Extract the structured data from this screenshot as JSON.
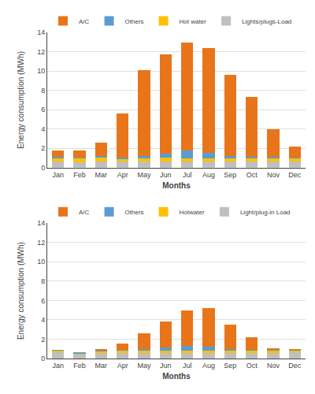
{
  "chart_data": [
    {
      "type": "bar",
      "stacked": true,
      "categories": [
        "Jan",
        "Feb",
        "Mar",
        "Apr",
        "May",
        "Jun",
        "Jul",
        "Aug",
        "Sep",
        "Oct",
        "Nov",
        "Dec"
      ],
      "xlabel": "Months",
      "ylabel": "Energy consumption (MWh)",
      "ylim": [
        0,
        14
      ],
      "yticks": [
        0,
        2,
        4,
        6,
        8,
        10,
        12,
        14
      ],
      "grid": true,
      "legend": "upper left",
      "series": [
        {
          "name": "Lights/plugs-Load",
          "color": "#BFBFBF",
          "values": [
            0.6,
            0.55,
            0.6,
            0.6,
            0.6,
            0.6,
            0.6,
            0.6,
            0.6,
            0.6,
            0.6,
            0.6
          ]
        },
        {
          "name": "Hot water",
          "color": "#FFC000",
          "values": [
            0.42,
            0.42,
            0.5,
            0.35,
            0.38,
            0.42,
            0.38,
            0.38,
            0.38,
            0.42,
            0.4,
            0.4
          ]
        },
        {
          "name": "Others",
          "color": "#5B9BD5",
          "values": [
            0.08,
            0.08,
            0.1,
            0.1,
            0.22,
            0.45,
            0.78,
            0.55,
            0.22,
            0.12,
            0.1,
            0.08
          ]
        },
        {
          "name": "A/C",
          "color": "#E8751A",
          "values": [
            0.7,
            0.72,
            1.38,
            4.55,
            8.9,
            10.25,
            11.18,
            10.8,
            8.42,
            6.15,
            2.85,
            1.08
          ]
        }
      ]
    },
    {
      "type": "bar",
      "stacked": true,
      "categories": [
        "Jan",
        "Feb",
        "Mar",
        "Apr",
        "May",
        "Jun",
        "Jul",
        "Aug",
        "Sep",
        "Oct",
        "Nov",
        "Dec"
      ],
      "xlabel": "Months",
      "ylabel": "Energy consumption (MWh)",
      "ylim": [
        0,
        14
      ],
      "yticks": [
        0,
        2,
        4,
        6,
        8,
        10,
        12,
        14
      ],
      "grid": true,
      "legend": "upper left",
      "series": [
        {
          "name": "Light/plug-in Load",
          "color": "#BFBFBF",
          "values": [
            0.65,
            0.4,
            0.55,
            0.55,
            0.55,
            0.55,
            0.55,
            0.55,
            0.55,
            0.55,
            0.55,
            0.65
          ]
        },
        {
          "name": "Hotwater",
          "color": "#FFC000",
          "values": [
            0.18,
            0.12,
            0.22,
            0.28,
            0.28,
            0.28,
            0.28,
            0.28,
            0.28,
            0.28,
            0.25,
            0.18
          ]
        },
        {
          "name": "Others",
          "color": "#5B9BD5",
          "values": [
            0.04,
            0.04,
            0.08,
            0.1,
            0.18,
            0.28,
            0.48,
            0.42,
            0.18,
            0.08,
            0.06,
            0.06
          ]
        },
        {
          "name": "A/C",
          "color": "#E8751A",
          "values": [
            0.0,
            0.0,
            0.12,
            0.6,
            1.6,
            2.7,
            3.65,
            4.0,
            2.5,
            1.28,
            0.18,
            0.05
          ]
        }
      ]
    }
  ]
}
